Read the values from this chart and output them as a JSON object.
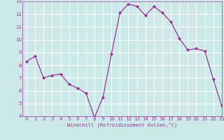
{
  "x": [
    0,
    1,
    2,
    3,
    4,
    5,
    6,
    7,
    8,
    9,
    10,
    11,
    12,
    13,
    14,
    15,
    16,
    17,
    18,
    19,
    20,
    21,
    22,
    23
  ],
  "y": [
    8.3,
    8.7,
    7.0,
    7.2,
    7.3,
    6.5,
    6.2,
    5.8,
    3.9,
    5.5,
    8.9,
    12.1,
    12.8,
    12.6,
    11.9,
    12.6,
    12.1,
    11.4,
    10.1,
    9.2,
    9.3,
    9.1,
    6.9,
    4.8
  ],
  "line_color": "#993399",
  "marker_color": "#993399",
  "bg_color": "#cce8e8",
  "grid_color": "#ffffff",
  "xlabel": "Windchill (Refroidissement éolien,°C)",
  "ylim": [
    4,
    13
  ],
  "xlim": [
    -0.5,
    23
  ],
  "yticks": [
    4,
    5,
    6,
    7,
    8,
    9,
    10,
    11,
    12,
    13
  ],
  "xticks": [
    0,
    1,
    2,
    3,
    4,
    5,
    6,
    7,
    8,
    9,
    10,
    11,
    12,
    13,
    14,
    15,
    16,
    17,
    18,
    19,
    20,
    21,
    22,
    23
  ]
}
